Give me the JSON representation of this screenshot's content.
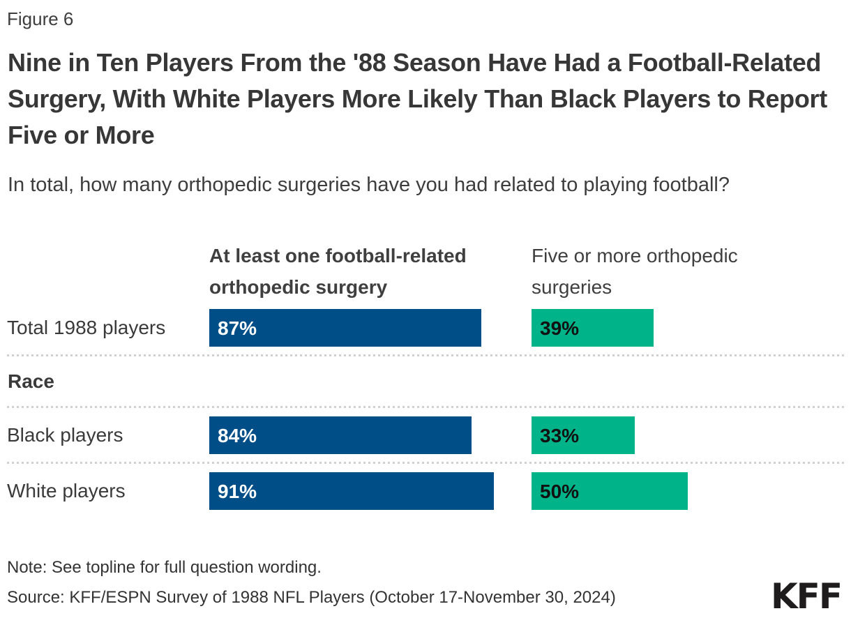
{
  "figure_label": "Figure 6",
  "title": "Nine in Ten Players From the '88 Season Have Had a Football-Related Surgery, With White Players More Likely Than Black Players to Report Five or More",
  "subtitle": "In total, how many orthopedic surgeries have you had related to playing football?",
  "note": "Note: See topline for full question wording.",
  "source": "Source: KFF/ESPN Survey of 1988 NFL Players (October 17-November 30, 2024)",
  "logo": "KFF",
  "colors": {
    "bar_blue": "#004e87",
    "bar_green": "#00b388",
    "divider_gray": "#d1d1d1",
    "text_dark": "#373737"
  },
  "chart_data": {
    "type": "bar",
    "orientation": "horizontal",
    "unit": "%",
    "xmax": 100,
    "grid": false,
    "title": "Nine in Ten Players From the '88 Season Have Had a Football-Related Surgery, With White Players More Likely Than Black Players to Report Five or More",
    "subtitle": "In total, how many orthopedic surgeries have you had related to playing football?",
    "columns": [
      {
        "label": "At least one football-related orthopedic surgery",
        "color": "#004e87",
        "value_color": "#ffffff",
        "bold_header": true
      },
      {
        "label": "Five or more orthopedic surgeries",
        "color": "#00b388",
        "value_color": "#111111",
        "bold_header": false
      }
    ],
    "rows": [
      {
        "kind": "data",
        "label": "Total 1988 players",
        "values": [
          87,
          39
        ]
      },
      {
        "kind": "section",
        "label": "Race"
      },
      {
        "kind": "data",
        "label": "Black players",
        "values": [
          84,
          33
        ]
      },
      {
        "kind": "data",
        "label": "White players",
        "values": [
          91,
          50
        ]
      }
    ]
  }
}
